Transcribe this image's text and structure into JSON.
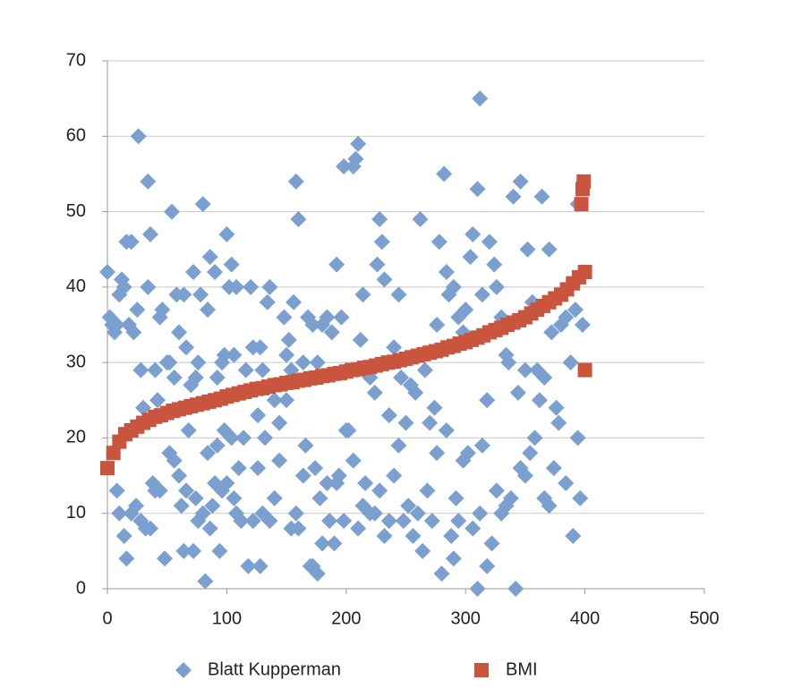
{
  "chart_data": {
    "type": "scatter",
    "xlim": [
      0,
      500
    ],
    "xticks": [
      0,
      100,
      200,
      300,
      400,
      500
    ],
    "ylim": [
      0,
      70
    ],
    "yticks": [
      0,
      10,
      20,
      30,
      40,
      50,
      60,
      70
    ],
    "grid": true,
    "legend": "bottom",
    "series": [
      {
        "name": "Blatt Kupperman",
        "color": "#7ba0d0",
        "marker": "diamond",
        "x": [
          0,
          2,
          4,
          6,
          8,
          10,
          12,
          14,
          16,
          18,
          20,
          22,
          25,
          26,
          28,
          30,
          34,
          34,
          36,
          40,
          42,
          44,
          46,
          50,
          52,
          54,
          56,
          58,
          60,
          64,
          66,
          70,
          72,
          74,
          76,
          78,
          80,
          84,
          86,
          90,
          92,
          96,
          98,
          100,
          102,
          104,
          106,
          108,
          114,
          116,
          120,
          122,
          126,
          128,
          130,
          134,
          136,
          140,
          144,
          148,
          150,
          152,
          154,
          156,
          158,
          160,
          164,
          168,
          172,
          176,
          180,
          184,
          188,
          192,
          196,
          198,
          200,
          202,
          206,
          208,
          210,
          212,
          214,
          220,
          224,
          226,
          228,
          230,
          232,
          236,
          240,
          244,
          246,
          250,
          254,
          258,
          262,
          266,
          270,
          274,
          276,
          278,
          282,
          284,
          286,
          290,
          294,
          298,
          300,
          304,
          306,
          310,
          312,
          314,
          318,
          320,
          324,
          326,
          330,
          334,
          336,
          340,
          344,
          346,
          350,
          352,
          356,
          360,
          364,
          366,
          370,
          372,
          376,
          380,
          384,
          388,
          392,
          394,
          396,
          398,
          8,
          10,
          14,
          16,
          20,
          24,
          28,
          32,
          36,
          38,
          40,
          44,
          48,
          52,
          56,
          60,
          62,
          64,
          66,
          68,
          72,
          74,
          76,
          80,
          82,
          84,
          86,
          88,
          90,
          92,
          94,
          96,
          98,
          100,
          104,
          106,
          108,
          110,
          112,
          118,
          122,
          126,
          128,
          130,
          132,
          136,
          140,
          144,
          150,
          154,
          158,
          160,
          164,
          166,
          170,
          172,
          174,
          176,
          178,
          180,
          184,
          186,
          190,
          192,
          194,
          198,
          200,
          206,
          210,
          214,
          216,
          220,
          224,
          228,
          232,
          236,
          240,
          244,
          248,
          252,
          256,
          260,
          264,
          268,
          272,
          276,
          280,
          284,
          288,
          290,
          292,
          294,
          298,
          302,
          306,
          310,
          312,
          314,
          318,
          322,
          326,
          330,
          334,
          338,
          342,
          346,
          350,
          354,
          358,
          362,
          366,
          370,
          374,
          378,
          384,
          390,
          394
        ],
        "values": [
          42,
          36,
          35,
          34,
          35,
          39,
          41,
          40,
          46,
          35,
          46,
          34,
          37,
          60,
          29,
          24,
          40,
          54,
          47,
          29,
          25,
          36,
          37,
          30,
          30,
          50,
          28,
          39,
          34,
          39,
          32,
          27,
          42,
          28,
          30,
          39,
          51,
          37,
          44,
          42,
          28,
          30,
          31,
          47,
          40,
          43,
          31,
          40,
          20,
          29,
          40,
          32,
          23,
          32,
          29,
          38,
          40,
          25,
          22,
          36,
          31,
          33,
          29,
          38,
          54,
          49,
          30,
          36,
          35,
          30,
          35,
          36,
          34,
          43,
          36,
          56,
          29,
          21,
          56,
          57,
          59,
          33,
          39,
          28,
          26,
          43,
          49,
          46,
          41,
          23,
          32,
          39,
          28,
          22,
          27,
          26,
          49,
          29,
          22,
          24,
          35,
          46,
          55,
          42,
          39,
          40,
          36,
          34,
          37,
          44,
          47,
          53,
          65,
          39,
          25,
          46,
          43,
          40,
          36,
          31,
          30,
          52,
          26,
          54,
          29,
          45,
          38,
          29,
          52,
          28,
          45,
          34,
          24,
          35,
          36,
          30,
          37,
          51,
          12,
          35,
          13,
          10,
          7,
          4,
          10,
          11,
          9,
          8,
          8,
          14,
          13,
          13,
          4,
          18,
          17,
          15,
          11,
          5,
          13,
          21,
          5,
          12,
          9,
          10,
          1,
          18,
          8,
          11,
          14,
          19,
          5,
          13,
          21,
          14,
          20,
          12,
          10,
          16,
          9,
          3,
          9,
          16,
          3,
          10,
          20,
          9,
          12,
          17,
          25,
          8,
          10,
          8,
          15,
          19,
          3,
          3,
          16,
          2,
          12,
          6,
          14,
          9,
          6,
          14,
          15,
          9,
          21,
          17,
          8,
          11,
          14,
          10,
          10,
          13,
          7,
          9,
          15,
          19,
          9,
          11,
          7,
          10,
          5,
          13,
          9,
          18,
          2,
          21,
          7,
          4,
          12,
          9,
          17,
          18,
          8,
          0,
          10,
          19,
          3,
          6,
          13,
          10,
          11,
          12,
          0,
          16,
          15,
          18,
          20,
          25,
          12,
          11,
          16,
          22,
          14,
          7,
          20
        ]
      },
      {
        "name": "BMI",
        "color": "#c9553f",
        "marker": "square",
        "x": [
          0,
          5,
          10,
          15,
          20,
          25,
          30,
          35,
          40,
          45,
          50,
          55,
          60,
          65,
          70,
          75,
          80,
          85,
          90,
          95,
          100,
          105,
          110,
          115,
          120,
          125,
          130,
          135,
          140,
          145,
          150,
          155,
          160,
          165,
          170,
          175,
          180,
          185,
          190,
          195,
          200,
          205,
          210,
          215,
          220,
          225,
          230,
          235,
          240,
          245,
          250,
          255,
          260,
          265,
          270,
          275,
          280,
          285,
          290,
          295,
          300,
          305,
          310,
          315,
          320,
          325,
          330,
          335,
          340,
          345,
          350,
          355,
          360,
          365,
          370,
          375,
          380,
          385,
          390,
          395,
          400,
          397,
          398,
          399,
          400
        ],
        "values": [
          16,
          18,
          19.5,
          20.5,
          21,
          21.5,
          22,
          22.4,
          22.8,
          23,
          23.3,
          23.6,
          23.8,
          24,
          24.2,
          24.4,
          24.6,
          24.8,
          25,
          25.2,
          25.5,
          25.7,
          25.9,
          26.1,
          26.3,
          26.5,
          26.6,
          26.8,
          27,
          27.1,
          27.3,
          27.4,
          27.6,
          27.7,
          27.9,
          28,
          28.2,
          28.3,
          28.5,
          28.6,
          28.8,
          29,
          29.1,
          29.3,
          29.4,
          29.6,
          29.8,
          30,
          30.1,
          30.3,
          30.5,
          30.7,
          30.9,
          31.1,
          31.3,
          31.5,
          31.7,
          32,
          32.2,
          32.5,
          32.7,
          33,
          33.3,
          33.6,
          34,
          34.3,
          34.6,
          35,
          35.3,
          35.6,
          36,
          36.5,
          37,
          37.5,
          38,
          38.5,
          39,
          39.7,
          40.5,
          41.3,
          42,
          51,
          53,
          54,
          29
        ]
      }
    ]
  }
}
